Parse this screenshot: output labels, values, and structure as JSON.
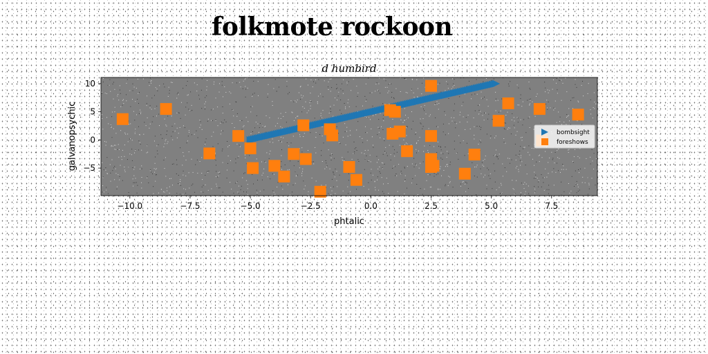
{
  "chart_data": {
    "type": "scatter",
    "title": "folkmote rockoon",
    "subtitle": "d humbird",
    "xlabel": "phtalic",
    "ylabel": "galvanopsychic",
    "xlim": [
      -11.2,
      9.4
    ],
    "ylim": [
      -9.9,
      11.1
    ],
    "xticks": [
      -10.0,
      -7.5,
      -5.0,
      -2.5,
      0.0,
      2.5,
      5.0,
      7.5
    ],
    "xtick_labels": [
      "−10.0",
      "−7.5",
      "−5.0",
      "−2.5",
      "0.0",
      "2.5",
      "5.0",
      "7.5"
    ],
    "yticks": [
      -5,
      0,
      5,
      10
    ],
    "ytick_labels": [
      "−5",
      "0",
      "5",
      "10"
    ],
    "plot_background": "#808080",
    "legend": {
      "placement": "center-right"
    },
    "series": [
      {
        "name": "bombsight",
        "marker": "triangle-right",
        "color": "#1f77b4",
        "x_range": [
          -5.0,
          5.2
        ],
        "y_range": [
          0.0,
          10.0
        ],
        "n_points": 140
      },
      {
        "name": "foreshows",
        "marker": "square",
        "color": "#ff7f0e",
        "x": [
          -10.3,
          -8.5,
          -6.7,
          -5.5,
          -5.0,
          -4.9,
          -4.0,
          -3.6,
          -3.2,
          -2.8,
          -2.7,
          -2.1,
          -1.7,
          -1.6,
          -0.9,
          -0.6,
          0.8,
          0.9,
          1.0,
          1.2,
          1.5,
          2.5,
          2.5,
          2.5,
          2.5,
          2.6,
          3.9,
          4.3,
          5.3,
          5.7,
          7.0,
          7.1,
          8.6
        ],
        "y": [
          3.7,
          5.5,
          -2.4,
          0.7,
          -1.5,
          -5.0,
          -4.6,
          -6.5,
          -2.5,
          2.6,
          -3.4,
          -9.2,
          1.9,
          0.8,
          -4.8,
          -7.1,
          5.3,
          1.1,
          5.0,
          1.5,
          -2.0,
          9.6,
          0.7,
          -3.4,
          -4.8,
          -4.6,
          -6.0,
          -2.6,
          3.4,
          6.5,
          5.5,
          -0.1,
          4.5
        ]
      }
    ]
  }
}
